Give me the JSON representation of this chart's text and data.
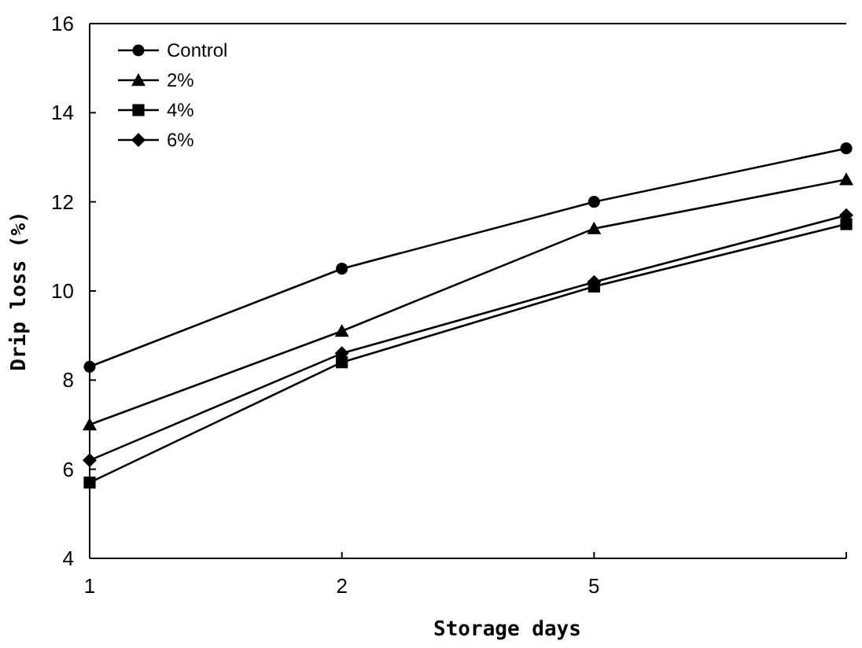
{
  "chart_data": {
    "type": "line",
    "xlabel": "Storage days",
    "ylabel": "Drip loss (%)",
    "categories": [
      "1",
      "2",
      "5",
      null
    ],
    "ylim": [
      4,
      16
    ],
    "yticks": [
      4,
      6,
      8,
      10,
      12,
      14,
      16
    ],
    "legend": "top left",
    "grid": false,
    "series": [
      {
        "name": "Control",
        "color": "#000000",
        "marker": "circle",
        "values": [
          8.3,
          10.5,
          12.0,
          13.2
        ]
      },
      {
        "name": "2%",
        "color": "#000000",
        "marker": "triangle",
        "values": [
          7.0,
          9.1,
          11.4,
          12.5
        ]
      },
      {
        "name": "4%",
        "color": "#000000",
        "marker": "square",
        "values": [
          5.7,
          8.4,
          10.1,
          11.5
        ]
      },
      {
        "name": "6%",
        "color": "#000000",
        "marker": "diamond",
        "values": [
          6.2,
          8.6,
          10.2,
          11.7
        ]
      }
    ]
  }
}
